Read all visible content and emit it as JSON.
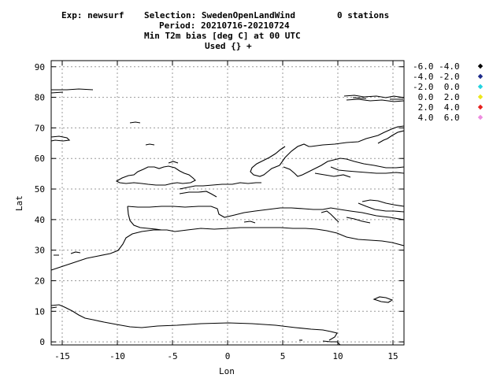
{
  "header": {
    "line1_exp": "Exp: newsurf",
    "line1_selection": "Selection: SwedenOpenLandWind",
    "line1_stations": "0 stations",
    "line2": "Period: 20210716-20210724",
    "line3": "Min T2m bias [deg C] at  00 UTC",
    "line4": "Used {} +"
  },
  "axes": {
    "xlabel": "Lon",
    "ylabel": "Lat",
    "x_ticks": [
      -15,
      -10,
      -5,
      0,
      5,
      10,
      15
    ],
    "y_ticks": [
      0,
      10,
      20,
      30,
      40,
      50,
      60,
      70,
      80,
      90
    ],
    "xlim": [
      -16,
      16
    ],
    "ylim": [
      -1,
      92
    ],
    "grid": true
  },
  "legend": {
    "placement": "right",
    "entries": [
      {
        "label": "-6.0 -4.0",
        "color": "#000000"
      },
      {
        "label": "-4.0 -2.0",
        "color": "#1c2a8a"
      },
      {
        "label": "-2.0  0.0",
        "color": "#22d3e0"
      },
      {
        "label": " 0.0  2.0",
        "color": "#ede61a"
      },
      {
        "label": " 2.0  4.0",
        "color": "#e8201c"
      },
      {
        "label": " 4.0  6.0",
        "color": "#ee8ce0"
      }
    ]
  },
  "map": {
    "type": "coastline",
    "stations_plotted": 0
  }
}
